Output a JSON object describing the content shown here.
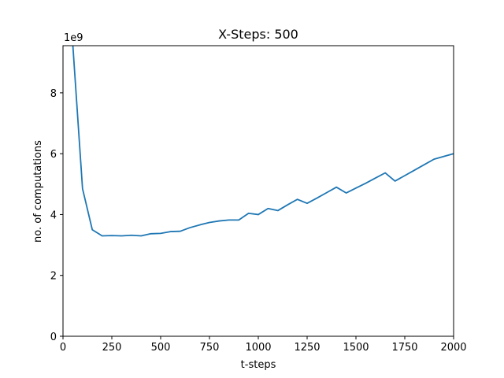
{
  "chart_data": {
    "type": "line",
    "title": "X-Steps: 500",
    "xlabel": "t-steps",
    "ylabel": "no. of computations",
    "y_offset_label": "1e9",
    "xlim": [
      0,
      2000
    ],
    "ylim": [
      0,
      9.55
    ],
    "y_scale_note": "values in units of 1e9",
    "x_ticks": [
      0,
      250,
      500,
      750,
      1000,
      1250,
      1500,
      1750,
      2000
    ],
    "y_ticks": [
      0,
      2,
      4,
      6,
      8
    ],
    "grid": false,
    "legend": "none",
    "series": [
      {
        "color": "#1f77b4",
        "x": [
          50,
          100,
          150,
          200,
          250,
          300,
          350,
          400,
          450,
          500,
          550,
          600,
          650,
          700,
          750,
          800,
          850,
          900,
          950,
          1000,
          1050,
          1100,
          1150,
          1200,
          1250,
          1300,
          1350,
          1400,
          1450,
          1500,
          1550,
          1600,
          1650,
          1700,
          1750,
          1800,
          1850,
          1900,
          1950,
          2000
        ],
        "y": [
          9.6,
          4.85,
          3.5,
          3.3,
          3.31,
          3.3,
          3.32,
          3.3,
          3.37,
          3.38,
          3.44,
          3.45,
          3.57,
          3.66,
          3.74,
          3.79,
          3.82,
          3.82,
          4.04,
          4.0,
          4.2,
          4.13,
          4.32,
          4.5,
          4.37,
          4.54,
          4.72,
          4.9,
          4.71,
          4.87,
          5.03,
          5.2,
          5.37,
          5.1,
          5.28,
          5.46,
          5.64,
          5.82,
          5.91,
          6.0
        ]
      }
    ]
  }
}
